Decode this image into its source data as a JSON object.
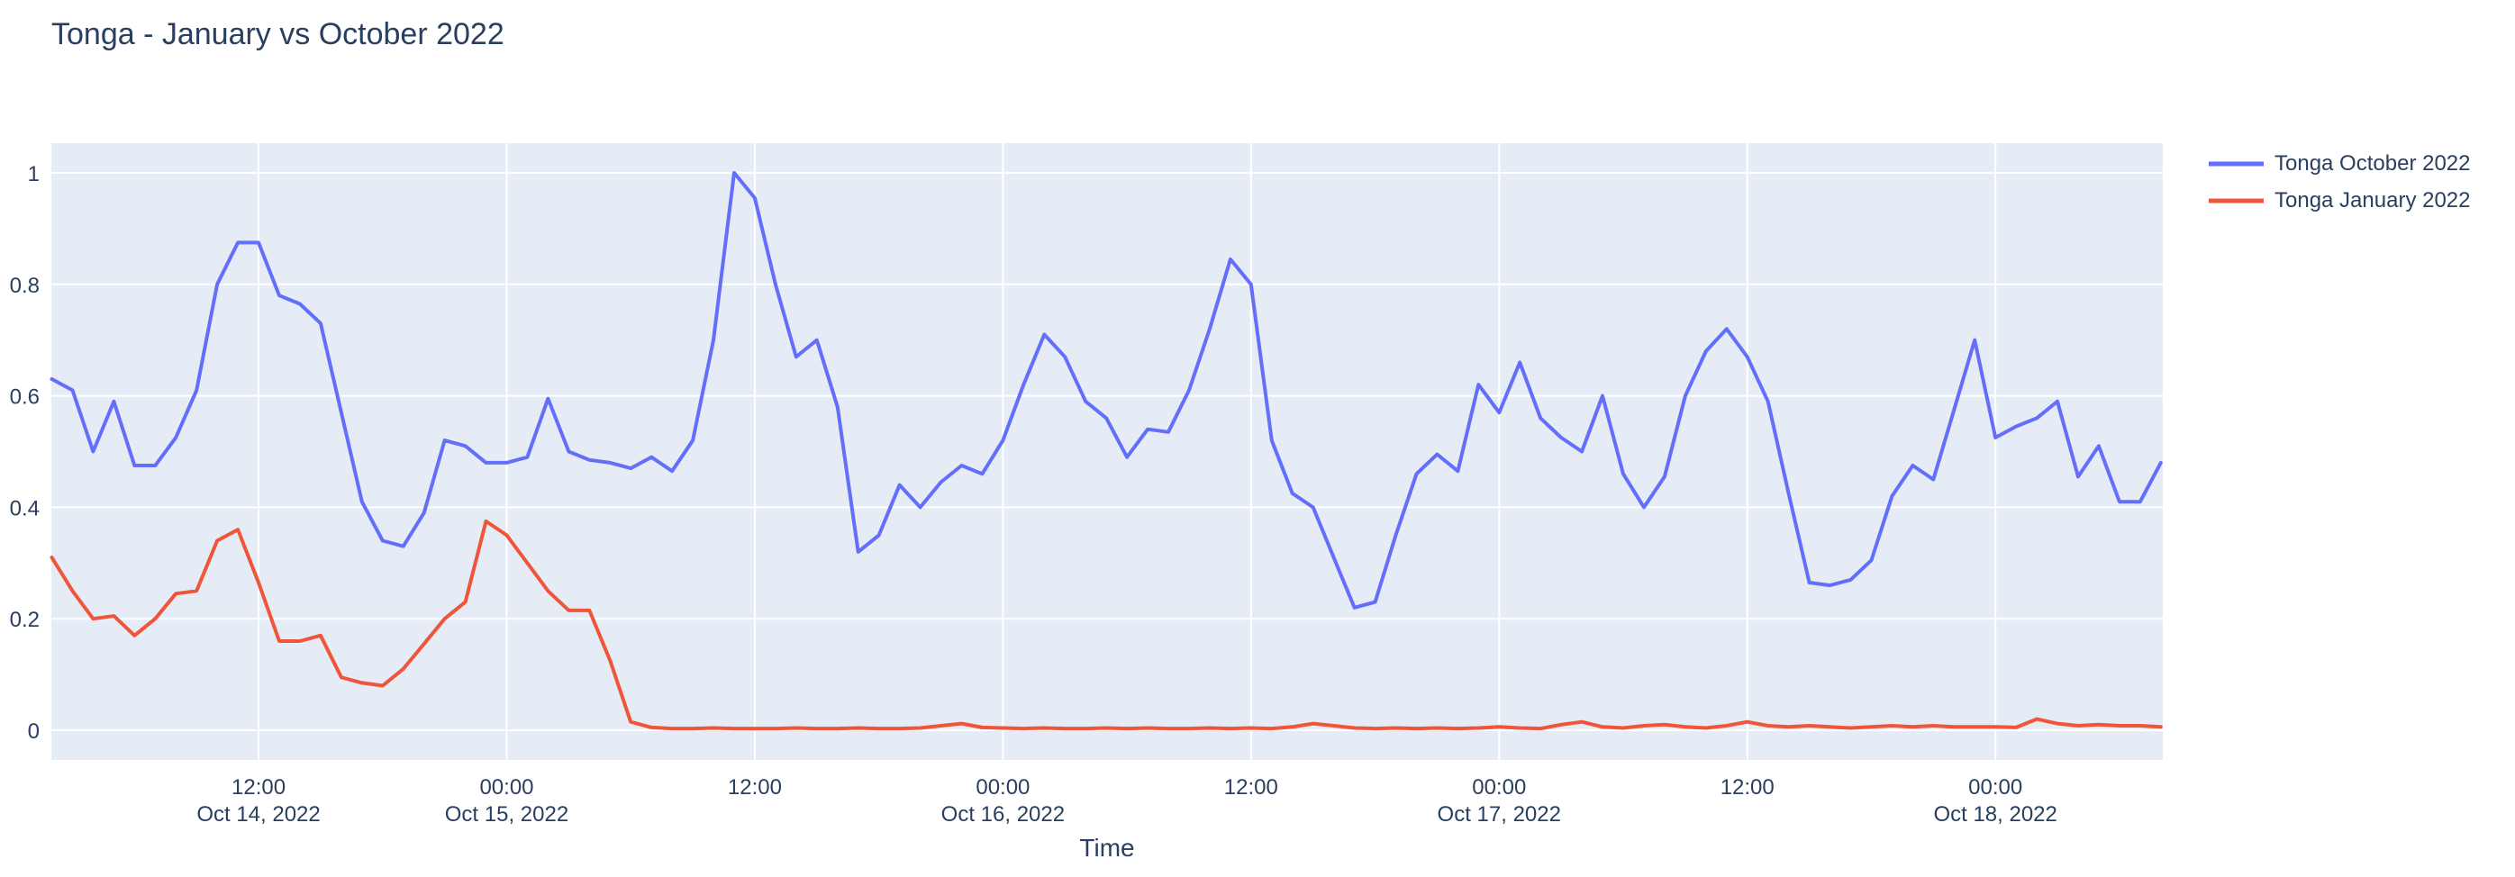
{
  "title": "Tonga - January vs October 2022",
  "colors": {
    "page_background": "#ffffff",
    "plot_background": "#e5ecf6",
    "grid": "#ffffff",
    "text": "#2a3f5f",
    "series_october": "#636efa",
    "series_january": "#ef553b"
  },
  "chart_data": {
    "type": "line",
    "title": "Tonga - January vs October 2022",
    "xlabel": "Time",
    "ylabel": "",
    "ylim": [
      0,
      1
    ],
    "yticks": [
      "0",
      "0.2",
      "0.4",
      "0.6",
      "0.8",
      "1"
    ],
    "ytick_values": [
      0,
      0.2,
      0.4,
      0.6,
      0.8,
      1
    ],
    "grid": true,
    "legend_position": "top-right-outside",
    "x_unit": "hours",
    "x_start_label": "Oct 14, 2022 02:00",
    "x_end_label": "Oct 18, 2022 08:00",
    "x_step_hours": 1,
    "xticks": [
      {
        "hour": 10,
        "time": "12:00",
        "date": "Oct 14, 2022"
      },
      {
        "hour": 22,
        "time": "00:00",
        "date": "Oct 15, 2022"
      },
      {
        "hour": 34,
        "time": "12:00",
        "date": ""
      },
      {
        "hour": 46,
        "time": "00:00",
        "date": "Oct 16, 2022"
      },
      {
        "hour": 58,
        "time": "12:00",
        "date": ""
      },
      {
        "hour": 70,
        "time": "00:00",
        "date": "Oct 17, 2022"
      },
      {
        "hour": 82,
        "time": "12:00",
        "date": ""
      },
      {
        "hour": 94,
        "time": "00:00",
        "date": "Oct 18, 2022"
      }
    ],
    "series": [
      {
        "name": "Tonga October 2022",
        "color": "#636efa",
        "values": [
          0.63,
          0.61,
          0.5,
          0.59,
          0.475,
          0.475,
          0.525,
          0.61,
          0.8,
          0.875,
          0.875,
          0.78,
          0.765,
          0.73,
          0.57,
          0.41,
          0.34,
          0.33,
          0.39,
          0.52,
          0.51,
          0.48,
          0.48,
          0.49,
          0.595,
          0.5,
          0.485,
          0.48,
          0.47,
          0.49,
          0.465,
          0.52,
          0.7,
          1.0,
          0.955,
          0.8,
          0.67,
          0.7,
          0.58,
          0.32,
          0.35,
          0.44,
          0.4,
          0.445,
          0.475,
          0.46,
          0.52,
          0.62,
          0.71,
          0.67,
          0.59,
          0.56,
          0.49,
          0.54,
          0.535,
          0.61,
          0.72,
          0.845,
          0.8,
          0.52,
          0.425,
          0.4,
          0.31,
          0.22,
          0.23,
          0.35,
          0.46,
          0.495,
          0.465,
          0.62,
          0.57,
          0.66,
          0.56,
          0.525,
          0.5,
          0.6,
          0.46,
          0.4,
          0.455,
          0.6,
          0.68,
          0.72,
          0.67,
          0.59,
          0.425,
          0.265,
          0.26,
          0.27,
          0.305,
          0.42,
          0.475,
          0.45,
          0.575,
          0.7,
          0.525,
          0.545,
          0.56,
          0.59,
          0.455,
          0.51,
          0.41,
          0.41,
          0.48
        ]
      },
      {
        "name": "Tonga January 2022",
        "color": "#ef553b",
        "values": [
          0.31,
          0.25,
          0.2,
          0.205,
          0.17,
          0.2,
          0.245,
          0.25,
          0.34,
          0.36,
          0.265,
          0.16,
          0.16,
          0.17,
          0.095,
          0.085,
          0.08,
          0.11,
          0.155,
          0.2,
          0.23,
          0.375,
          0.35,
          0.3,
          0.25,
          0.215,
          0.215,
          0.125,
          0.015,
          0.005,
          0.003,
          0.003,
          0.004,
          0.003,
          0.003,
          0.003,
          0.004,
          0.003,
          0.003,
          0.004,
          0.003,
          0.003,
          0.004,
          0.008,
          0.012,
          0.005,
          0.004,
          0.003,
          0.004,
          0.003,
          0.003,
          0.004,
          0.003,
          0.004,
          0.003,
          0.003,
          0.004,
          0.003,
          0.004,
          0.003,
          0.006,
          0.012,
          0.008,
          0.004,
          0.003,
          0.004,
          0.003,
          0.004,
          0.003,
          0.004,
          0.006,
          0.004,
          0.003,
          0.01,
          0.015,
          0.006,
          0.004,
          0.008,
          0.01,
          0.006,
          0.004,
          0.008,
          0.015,
          0.008,
          0.006,
          0.008,
          0.006,
          0.004,
          0.006,
          0.008,
          0.006,
          0.008,
          0.006,
          0.006,
          0.006,
          0.005,
          0.02,
          0.012,
          0.008,
          0.01,
          0.008,
          0.008,
          0.006
        ]
      }
    ]
  }
}
